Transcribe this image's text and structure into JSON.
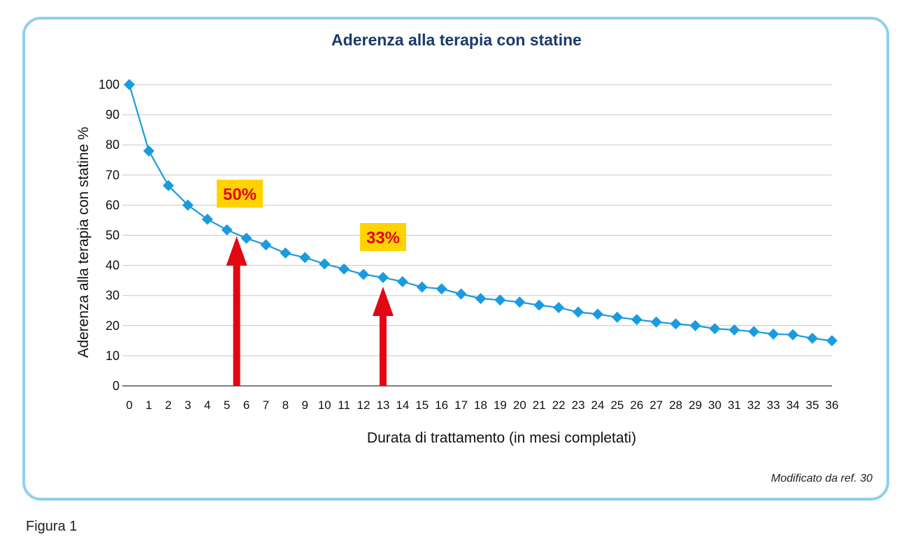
{
  "figure_caption": "Figura 1",
  "source_note": "Modificato da ref. 30",
  "colors": {
    "line": "#1a9be0",
    "marker": "#1a9be0",
    "arrow": "#e30613",
    "label_bg": "#ffd300",
    "label_text": "#e30613",
    "title": "#1b3a6b",
    "grid": "#c8c8c8",
    "frame": "#8fd1ee"
  },
  "chart_data": {
    "type": "line",
    "title": "Aderenza alla terapia con statine",
    "xlabel": "Durata di trattamento (in mesi completati)",
    "ylabel": "Aderenza alla terapia con statine %",
    "xlim": [
      0,
      36
    ],
    "ylim": [
      0,
      100
    ],
    "grid": true,
    "x": [
      0,
      1,
      2,
      3,
      4,
      5,
      6,
      7,
      8,
      9,
      10,
      11,
      12,
      13,
      14,
      15,
      16,
      17,
      18,
      19,
      20,
      21,
      22,
      23,
      24,
      25,
      26,
      27,
      28,
      29,
      30,
      31,
      32,
      33,
      34,
      35,
      36
    ],
    "x_tick_labels": [
      "0",
      "1",
      "2",
      "3",
      "4",
      "5",
      "6",
      "7",
      "8",
      "9",
      "10",
      "11",
      "12",
      "13",
      "14",
      "15",
      "16",
      "17",
      "18",
      "19",
      "20",
      "21",
      "22",
      "23",
      "24",
      "25",
      "26",
      "27",
      "28",
      "29",
      "30",
      "31",
      "32",
      "33",
      "34",
      "35",
      "36"
    ],
    "y_tick_labels": [
      "0",
      "10",
      "20",
      "30",
      "40",
      "50",
      "60",
      "70",
      "80",
      "90",
      "100"
    ],
    "series": [
      {
        "values": [
          100,
          78,
          66.5,
          60,
          55.3,
          51.8,
          49,
          46.8,
          44.1,
          42.6,
          40.5,
          38.8,
          37,
          36,
          34.6,
          32.8,
          32.2,
          30.5,
          29,
          28.5,
          27.8,
          26.8,
          26,
          24.5,
          23.8,
          22.8,
          22,
          21.2,
          20.6,
          20,
          19,
          18.6,
          18,
          17.2,
          17,
          15.8,
          15
        ]
      }
    ],
    "annotations": [
      {
        "label": "50%",
        "arrow_x": 5.5
      },
      {
        "label": "33%",
        "arrow_x": 13
      }
    ]
  }
}
